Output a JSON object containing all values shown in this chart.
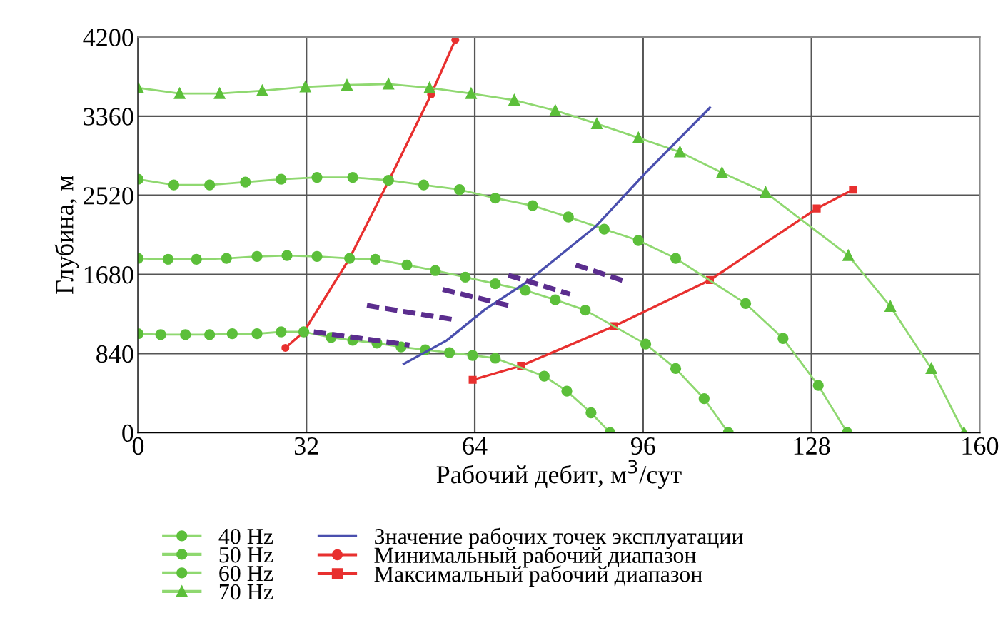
{
  "chart_data": {
    "type": "line",
    "xlabel": "Рабочий дебит, м$^{3}$/сут",
    "ylabel": "Глубина, м",
    "xlim": [
      0,
      160
    ],
    "ylim": [
      0,
      4200
    ],
    "xticks": [
      0,
      32,
      64,
      96,
      128,
      160
    ],
    "yticks": [
      0,
      840,
      1680,
      2520,
      3360,
      4200
    ],
    "grid": true,
    "legend": "bottom",
    "series": [
      {
        "name": "40 Hz",
        "color": "#5cbf3a",
        "marker": "circle",
        "x": [
          0,
          4.3,
          9,
          13.6,
          17.9,
          22.6,
          27.2,
          31.5,
          36.7,
          40.8,
          45.4,
          50,
          54.6,
          59.2,
          63.6,
          67.9,
          77.2,
          81.5,
          86.1,
          89.7
        ],
        "values": [
          1050,
          1040,
          1040,
          1040,
          1050,
          1050,
          1070,
          1070,
          1010,
          980,
          950,
          910,
          880,
          850,
          820,
          790,
          600,
          440,
          210,
          0
        ]
      },
      {
        "name": "50 Hz",
        "color": "#5cbf3a",
        "marker": "circle",
        "x": [
          0,
          5.7,
          11.1,
          16.8,
          22.6,
          28.3,
          34,
          40.2,
          45.1,
          51.1,
          56.5,
          62.2,
          67.9,
          73.6,
          79.3,
          85,
          96.5,
          102.2,
          107.6,
          112.2
        ],
        "values": [
          1850,
          1840,
          1840,
          1850,
          1870,
          1880,
          1870,
          1850,
          1840,
          1780,
          1720,
          1650,
          1580,
          1510,
          1410,
          1300,
          940,
          680,
          360,
          0
        ]
      },
      {
        "name": "60 Hz",
        "color": "#5cbf3a",
        "marker": "circle",
        "x": [
          0,
          6.8,
          13.6,
          20.4,
          27.2,
          34,
          40.8,
          47.6,
          54.3,
          61.1,
          67.9,
          75,
          81.8,
          88.6,
          95.1,
          102.2,
          115.5,
          122.6,
          129.3,
          134.8
        ],
        "values": [
          2690,
          2630,
          2630,
          2660,
          2690,
          2710,
          2710,
          2680,
          2630,
          2580,
          2490,
          2410,
          2290,
          2160,
          2040,
          1850,
          1370,
          1000,
          500,
          0
        ]
      },
      {
        "name": "70 Hz",
        "color": "#5cbf3a",
        "marker": "triangle",
        "x": [
          0,
          7.9,
          15.5,
          23.6,
          31.8,
          39.7,
          47.6,
          55.4,
          63.3,
          71.5,
          79.3,
          87.2,
          95.1,
          103,
          111,
          119.3,
          135,
          143,
          150.8,
          157
        ],
        "values": [
          3660,
          3600,
          3600,
          3630,
          3670,
          3690,
          3700,
          3660,
          3600,
          3530,
          3420,
          3280,
          3130,
          2980,
          2760,
          2550,
          1880,
          1340,
          680,
          0
        ]
      },
      {
        "name": "Значение рабочих точек эксплуатации",
        "color": "#4a4fae",
        "marker": "none",
        "x": [
          50.5,
          58.7,
          66,
          74.2,
          87,
          96.5,
          108.7
        ],
        "values": [
          730,
          980,
          1310,
          1610,
          2190,
          2760,
          3450
        ]
      },
      {
        "name": "Минимальный рабочий диапазон",
        "color": "#e8302f",
        "marker": "circle",
        "x": [
          28,
          31.5,
          40.2,
          47.8,
          55.7,
          60.3
        ],
        "values": [
          900,
          1070,
          1850,
          2690,
          3590,
          4170
        ]
      },
      {
        "name": "Максимальный рабочий диапазон",
        "color": "#e8302f",
        "marker": "square",
        "x": [
          63.6,
          72.8,
          90.5,
          108.7,
          129,
          135.9
        ],
        "values": [
          560,
          710,
          1130,
          1620,
          2380,
          2580
        ]
      },
      {
        "color": "#5b2d8e",
        "marker": "none",
        "line_style": "dashed",
        "x": [
          33.4,
          51.6
        ],
        "values": [
          1070,
          930
        ]
      },
      {
        "color": "#5b2d8e",
        "marker": "none",
        "line_style": "dashed",
        "x": [
          43.5,
          60
        ],
        "values": [
          1350,
          1200
        ]
      },
      {
        "color": "#5b2d8e",
        "marker": "none",
        "line_style": "dashed",
        "x": [
          57.9,
          71.2
        ],
        "values": [
          1520,
          1340
        ]
      },
      {
        "color": "#5b2d8e",
        "marker": "none",
        "line_style": "dashed",
        "x": [
          70.4,
          82.1
        ],
        "values": [
          1670,
          1470
        ]
      },
      {
        "color": "#5b2d8e",
        "marker": "none",
        "line_style": "dashed",
        "x": [
          83.2,
          92.4
        ],
        "values": [
          1780,
          1610
        ]
      }
    ]
  }
}
